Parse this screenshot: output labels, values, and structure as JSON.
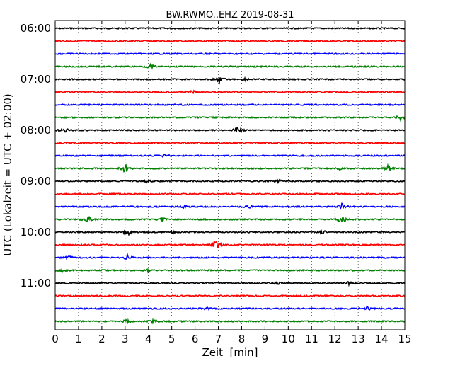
{
  "chart_data": {
    "type": "line",
    "title": "BW.RWMO..EHZ 2019-08-31",
    "xlabel": "Zeit  [min]",
    "ylabel": "UTC (Lokalzeit = UTC + 02:00)",
    "xlim": [
      0,
      15
    ],
    "x_ticks": [
      "0",
      "1",
      "2",
      "3",
      "4",
      "5",
      "6",
      "7",
      "8",
      "9",
      "10",
      "11",
      "12",
      "13",
      "14",
      "15"
    ],
    "y_ticks": [
      "06:00",
      "07:00",
      "08:00",
      "09:00",
      "10:00",
      "11:00"
    ],
    "grid": "vertical dotted at each minute",
    "row_colors": [
      "#000000",
      "#ff0000",
      "#0000ff",
      "#008000"
    ],
    "rows_per_hour": 4,
    "minutes_per_row": 15,
    "series": [
      {
        "row": 0,
        "events": []
      },
      {
        "row": 1,
        "events": []
      },
      {
        "row": 2,
        "events": []
      },
      {
        "row": 3,
        "events": [
          {
            "t": 4.1,
            "amp": 3
          }
        ]
      },
      {
        "row": 4,
        "events": [
          {
            "t": 7.0,
            "amp": 6
          },
          {
            "t": 8.2,
            "amp": 2
          }
        ]
      },
      {
        "row": 5,
        "events": [
          {
            "t": 5.9,
            "amp": 2
          }
        ]
      },
      {
        "row": 6,
        "events": []
      },
      {
        "row": 7,
        "events": [
          {
            "t": 14.8,
            "amp": 4
          }
        ]
      },
      {
        "row": 8,
        "events": [
          {
            "t": 0.4,
            "amp": 4
          },
          {
            "t": 7.8,
            "amp": 6
          }
        ]
      },
      {
        "row": 9,
        "events": []
      },
      {
        "row": 10,
        "events": [
          {
            "t": 4.7,
            "amp": 2
          }
        ]
      },
      {
        "row": 11,
        "events": [
          {
            "t": 3.0,
            "amp": 7
          },
          {
            "t": 12.2,
            "amp": 2
          },
          {
            "t": 14.3,
            "amp": 5
          }
        ]
      },
      {
        "row": 12,
        "events": [
          {
            "t": 3.9,
            "amp": 2
          },
          {
            "t": 9.6,
            "amp": 2
          }
        ]
      },
      {
        "row": 13,
        "events": []
      },
      {
        "row": 14,
        "events": [
          {
            "t": 5.5,
            "amp": 2
          },
          {
            "t": 8.3,
            "amp": 2
          },
          {
            "t": 12.3,
            "amp": 5
          }
        ]
      },
      {
        "row": 15,
        "events": [
          {
            "t": 1.4,
            "amp": 6
          },
          {
            "t": 4.6,
            "amp": 3
          },
          {
            "t": 12.3,
            "amp": 7
          }
        ]
      },
      {
        "row": 16,
        "events": [
          {
            "t": 3.1,
            "amp": 5
          },
          {
            "t": 5.1,
            "amp": 3
          },
          {
            "t": 11.5,
            "amp": 2
          }
        ]
      },
      {
        "row": 17,
        "events": [
          {
            "t": 6.9,
            "amp": 8
          }
        ]
      },
      {
        "row": 18,
        "events": [
          {
            "t": 3.1,
            "amp": 4
          },
          {
            "t": 0.6,
            "amp": 2
          }
        ]
      },
      {
        "row": 19,
        "events": [
          {
            "t": 0.3,
            "amp": 3
          },
          {
            "t": 4.0,
            "amp": 2
          }
        ]
      },
      {
        "row": 20,
        "events": [
          {
            "t": 9.5,
            "amp": 2
          },
          {
            "t": 12.6,
            "amp": 2
          }
        ]
      },
      {
        "row": 21,
        "events": []
      },
      {
        "row": 22,
        "events": [
          {
            "t": 6.5,
            "amp": 2
          },
          {
            "t": 13.4,
            "amp": 3
          }
        ]
      },
      {
        "row": 23,
        "events": [
          {
            "t": 3.1,
            "amp": 3
          },
          {
            "t": 4.2,
            "amp": 2
          }
        ]
      }
    ]
  }
}
